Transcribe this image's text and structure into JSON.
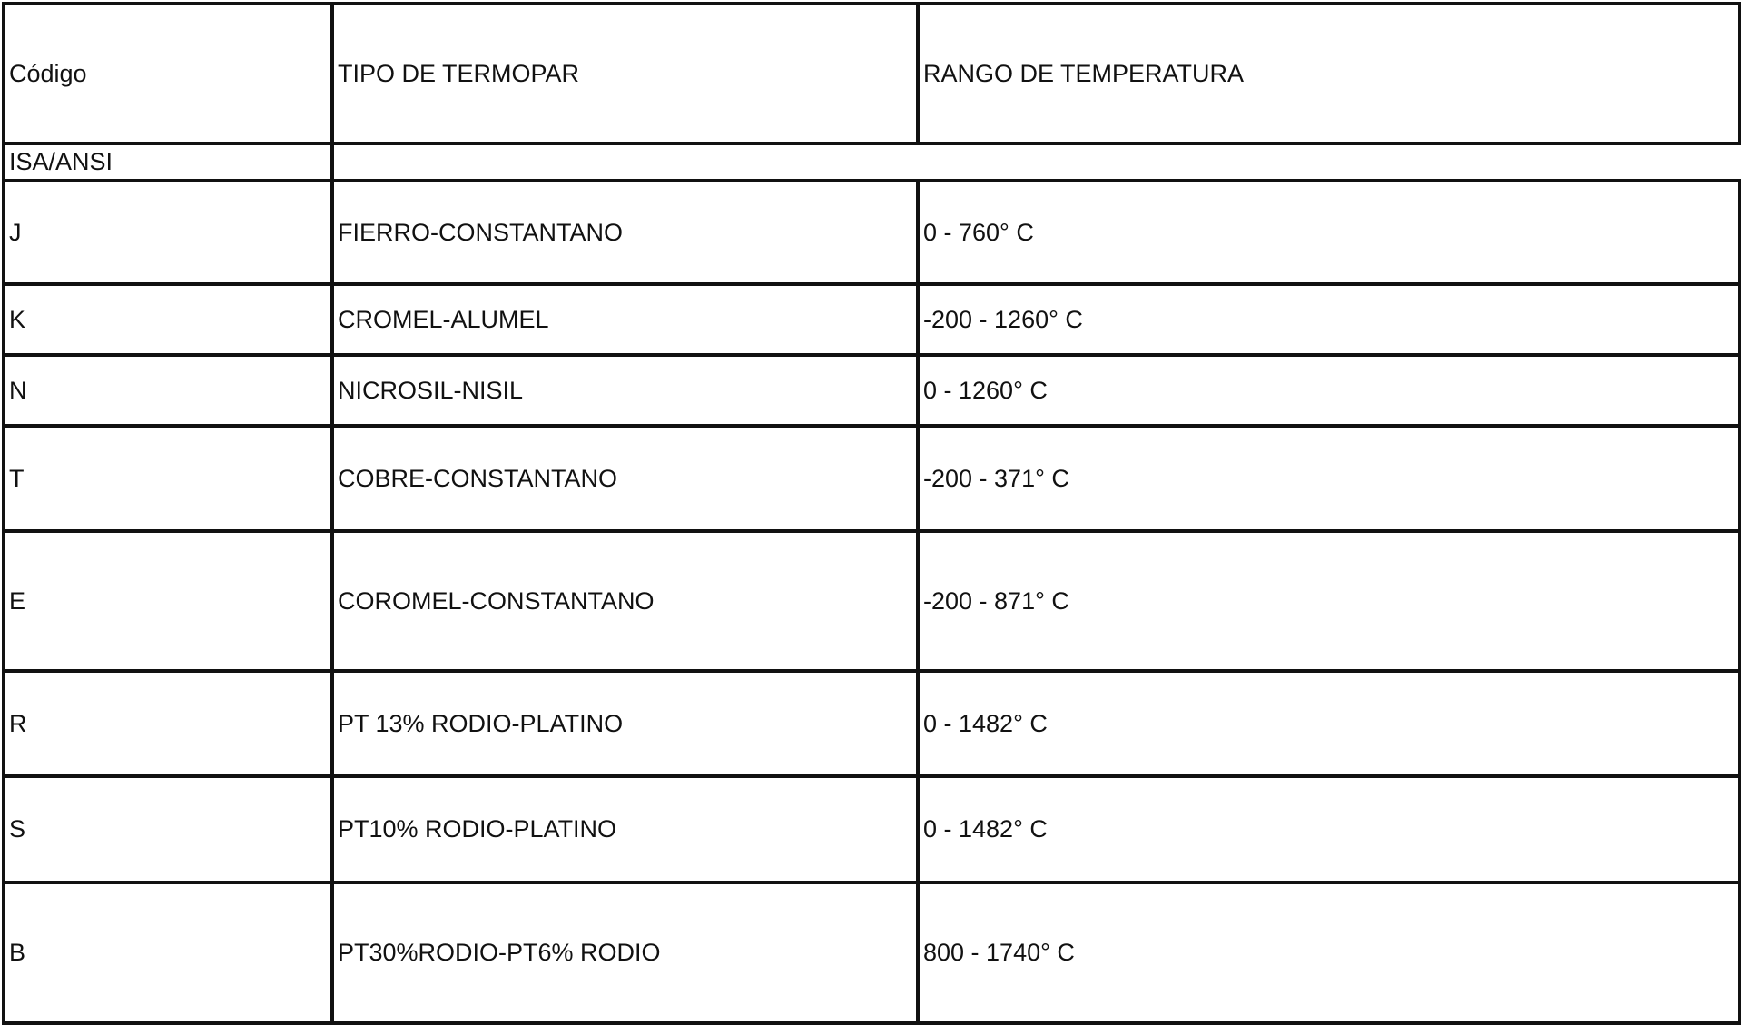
{
  "table": {
    "headers": [
      "Código",
      "TIPO DE TERMOPAR",
      "RANGO DE TEMPERATURA"
    ],
    "subheader": "ISA/ANSI",
    "rows": [
      {
        "code": "J",
        "type": "FIERRO-CONSTANTANO",
        "range": "0 - 760° C"
      },
      {
        "code": "K",
        "type": "CROMEL-ALUMEL",
        "range": "-200 - 1260° C"
      },
      {
        "code": "N",
        "type": "NICROSIL-NISIL",
        "range": "0 - 1260° C"
      },
      {
        "code": "T",
        "type": "COBRE-CONSTANTANO",
        "range": "-200 - 371° C"
      },
      {
        "code": "E",
        "type": "COROMEL-CONSTANTANO",
        "range": "-200 - 871° C"
      },
      {
        "code": "R",
        "type": "PT 13% RODIO-PLATINO",
        "range": "0 - 1482° C"
      },
      {
        "code": "S",
        "type": "PT10% RODIO-PLATINO",
        "range": "0 - 1482° C"
      },
      {
        "code": "B",
        "type": "PT30%RODIO-PT6% RODIO",
        "range": "800 - 1740° C"
      }
    ]
  }
}
